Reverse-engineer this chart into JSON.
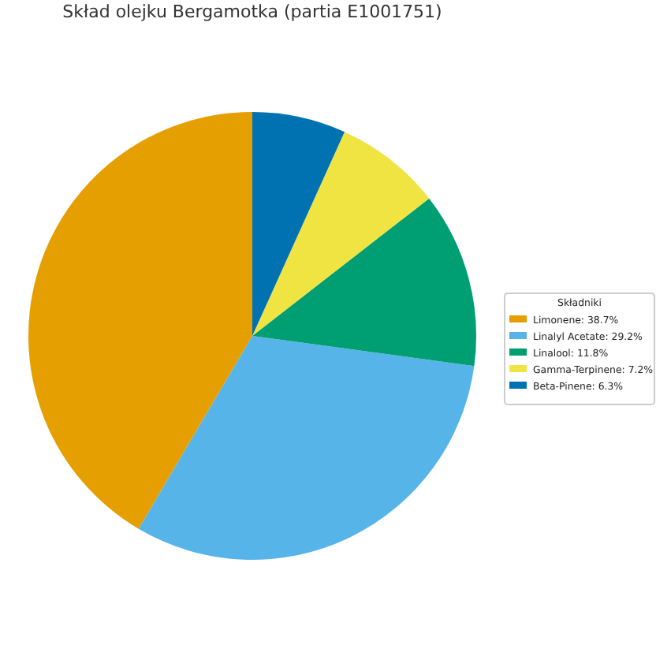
{
  "chart_data": {
    "type": "pie",
    "title": "Skład olejku Bergamotka (partia E1001751)",
    "legend_title": "Składniki",
    "legend": "right",
    "categories": [
      "Limonene",
      "Linalyl Acetate",
      "Linalool",
      "Gamma-Terpinene",
      "Beta-Pinene"
    ],
    "values": [
      38.7,
      29.2,
      11.8,
      7.2,
      6.3
    ],
    "value_labels": [
      "38.7%",
      "29.2%",
      "11.8%",
      "7.2%",
      "6.3%"
    ],
    "colors": [
      "#e69f00",
      "#56b4e9",
      "#009e73",
      "#f0e442",
      "#0072b2"
    ]
  }
}
